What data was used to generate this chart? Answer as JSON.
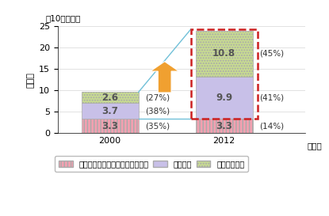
{
  "years": [
    "2000",
    "2012"
  ],
  "hardware": [
    3.3,
    3.3
  ],
  "services": [
    3.7,
    9.9
  ],
  "software": [
    2.6,
    10.8
  ],
  "hardware_pct": [
    "(35%)",
    "(14%)"
  ],
  "services_pct": [
    "(38%)",
    "(41%)"
  ],
  "software_pct": [
    "(27%)",
    "(45%)"
  ],
  "color_hardware": "#f2a0b0",
  "color_services": "#c8c0e8",
  "color_software": "#c8dc90",
  "hatch_hardware": "||||",
  "hatch_services": "",
  "hatch_software": ".....",
  "ylim": [
    0,
    25
  ],
  "yticks": [
    0,
    5,
    10,
    15,
    20,
    25
  ],
  "ylabel": "売上高",
  "xlabel_unit": "（年）",
  "top_label": "（10億ドル）",
  "legend_hardware": "ハードウェア／ファイナンシング",
  "legend_services": "サービス",
  "legend_software": "ソフトウェア",
  "bar_width": 0.6,
  "bar_x0": 0.55,
  "bar_x1": 1.75,
  "xlim_left": 0.0,
  "xlim_right": 2.6,
  "dashed_rect_color": "#cc2020",
  "arrow_fill_color": "#f0a030",
  "line_color": "#70c0d8",
  "label_text_color": "#333333",
  "value_text_color": "#555555"
}
